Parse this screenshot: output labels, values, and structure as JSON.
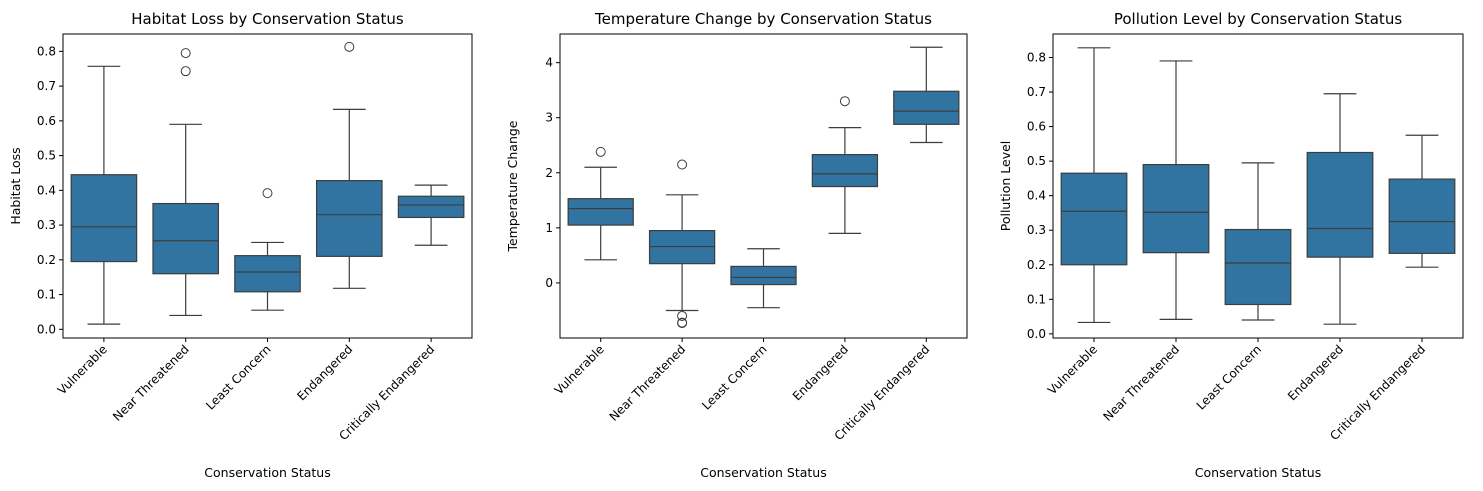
{
  "chart_data": [
    {
      "type": "box",
      "title": "Habitat Loss by Conservation Status",
      "xlabel": "Conservation Status",
      "ylabel": "Habitat Loss",
      "categories": [
        "Vulnerable",
        "Near Threatened",
        "Least Concern",
        "Endangered",
        "Critically Endangered"
      ],
      "ylim": [
        -0.025,
        0.85
      ],
      "yticks": [
        0.0,
        0.1,
        0.2,
        0.3,
        0.4,
        0.5,
        0.6,
        0.7,
        0.8
      ],
      "ytick_labels": [
        "0.0",
        "0.1",
        "0.2",
        "0.3",
        "0.4",
        "0.5",
        "0.6",
        "0.7",
        "0.8"
      ],
      "boxes": [
        {
          "category": "Vulnerable",
          "whisker_low": 0.015,
          "q1": 0.195,
          "median": 0.295,
          "q3": 0.445,
          "whisker_high": 0.757,
          "outliers": []
        },
        {
          "category": "Near Threatened",
          "whisker_low": 0.04,
          "q1": 0.16,
          "median": 0.255,
          "q3": 0.362,
          "whisker_high": 0.59,
          "outliers": [
            0.795,
            0.743
          ]
        },
        {
          "category": "Least Concern",
          "whisker_low": 0.055,
          "q1": 0.108,
          "median": 0.165,
          "q3": 0.212,
          "whisker_high": 0.25,
          "outliers": [
            0.392
          ]
        },
        {
          "category": "Endangered",
          "whisker_low": 0.118,
          "q1": 0.21,
          "median": 0.33,
          "q3": 0.428,
          "whisker_high": 0.633,
          "outliers": [
            0.813
          ]
        },
        {
          "category": "Critically Endangered",
          "whisker_low": 0.242,
          "q1": 0.322,
          "median": 0.358,
          "q3": 0.383,
          "whisker_high": 0.415,
          "outliers": []
        }
      ]
    },
    {
      "type": "box",
      "title": "Temperature Change by Conservation Status",
      "xlabel": "Conservation Status",
      "ylabel": "Temperature Change",
      "categories": [
        "Vulnerable",
        "Near Threatened",
        "Least Concern",
        "Endangered",
        "Critically Endangered"
      ],
      "ylim": [
        -1.0,
        4.52
      ],
      "yticks": [
        0,
        1,
        2,
        3,
        4
      ],
      "ytick_labels": [
        "0",
        "1",
        "2",
        "3",
        "4"
      ],
      "boxes": [
        {
          "category": "Vulnerable",
          "whisker_low": 0.42,
          "q1": 1.05,
          "median": 1.35,
          "q3": 1.53,
          "whisker_high": 2.1,
          "outliers": [
            2.38
          ]
        },
        {
          "category": "Near Threatened",
          "whisker_low": -0.5,
          "q1": 0.35,
          "median": 0.66,
          "q3": 0.95,
          "whisker_high": 1.6,
          "outliers": [
            2.15,
            -0.6,
            -0.72,
            -0.73
          ]
        },
        {
          "category": "Least Concern",
          "whisker_low": -0.45,
          "q1": -0.03,
          "median": 0.1,
          "q3": 0.3,
          "whisker_high": 0.62,
          "outliers": []
        },
        {
          "category": "Endangered",
          "whisker_low": 0.9,
          "q1": 1.75,
          "median": 1.98,
          "q3": 2.33,
          "whisker_high": 2.82,
          "outliers": [
            3.3
          ]
        },
        {
          "category": "Critically Endangered",
          "whisker_low": 2.55,
          "q1": 2.88,
          "median": 3.12,
          "q3": 3.48,
          "whisker_high": 4.28,
          "outliers": []
        }
      ]
    },
    {
      "type": "box",
      "title": "Pollution Level by Conservation Status",
      "xlabel": "Conservation Status",
      "ylabel": "Pollution Level",
      "categories": [
        "Vulnerable",
        "Near Threatened",
        "Least Concern",
        "Endangered",
        "Critically Endangered"
      ],
      "ylim": [
        -0.012,
        0.868
      ],
      "yticks": [
        0.0,
        0.1,
        0.2,
        0.3,
        0.4,
        0.5,
        0.6,
        0.7,
        0.8
      ],
      "ytick_labels": [
        "0.0",
        "0.1",
        "0.2",
        "0.3",
        "0.4",
        "0.5",
        "0.6",
        "0.7",
        "0.8"
      ],
      "boxes": [
        {
          "category": "Vulnerable",
          "whisker_low": 0.033,
          "q1": 0.2,
          "median": 0.355,
          "q3": 0.465,
          "whisker_high": 0.828,
          "outliers": []
        },
        {
          "category": "Near Threatened",
          "whisker_low": 0.042,
          "q1": 0.235,
          "median": 0.352,
          "q3": 0.49,
          "whisker_high": 0.79,
          "outliers": []
        },
        {
          "category": "Least Concern",
          "whisker_low": 0.04,
          "q1": 0.085,
          "median": 0.205,
          "q3": 0.302,
          "whisker_high": 0.495,
          "outliers": []
        },
        {
          "category": "Endangered",
          "whisker_low": 0.028,
          "q1": 0.222,
          "median": 0.305,
          "q3": 0.525,
          "whisker_high": 0.695,
          "outliers": []
        },
        {
          "category": "Critically Endangered",
          "whisker_low": 0.193,
          "q1": 0.233,
          "median": 0.325,
          "q3": 0.448,
          "whisker_high": 0.575,
          "outliers": []
        }
      ]
    }
  ],
  "colors": {
    "box_fill": "#3274a1",
    "line": "#3d3d3d",
    "axes": "#000000",
    "background": "#ffffff"
  }
}
